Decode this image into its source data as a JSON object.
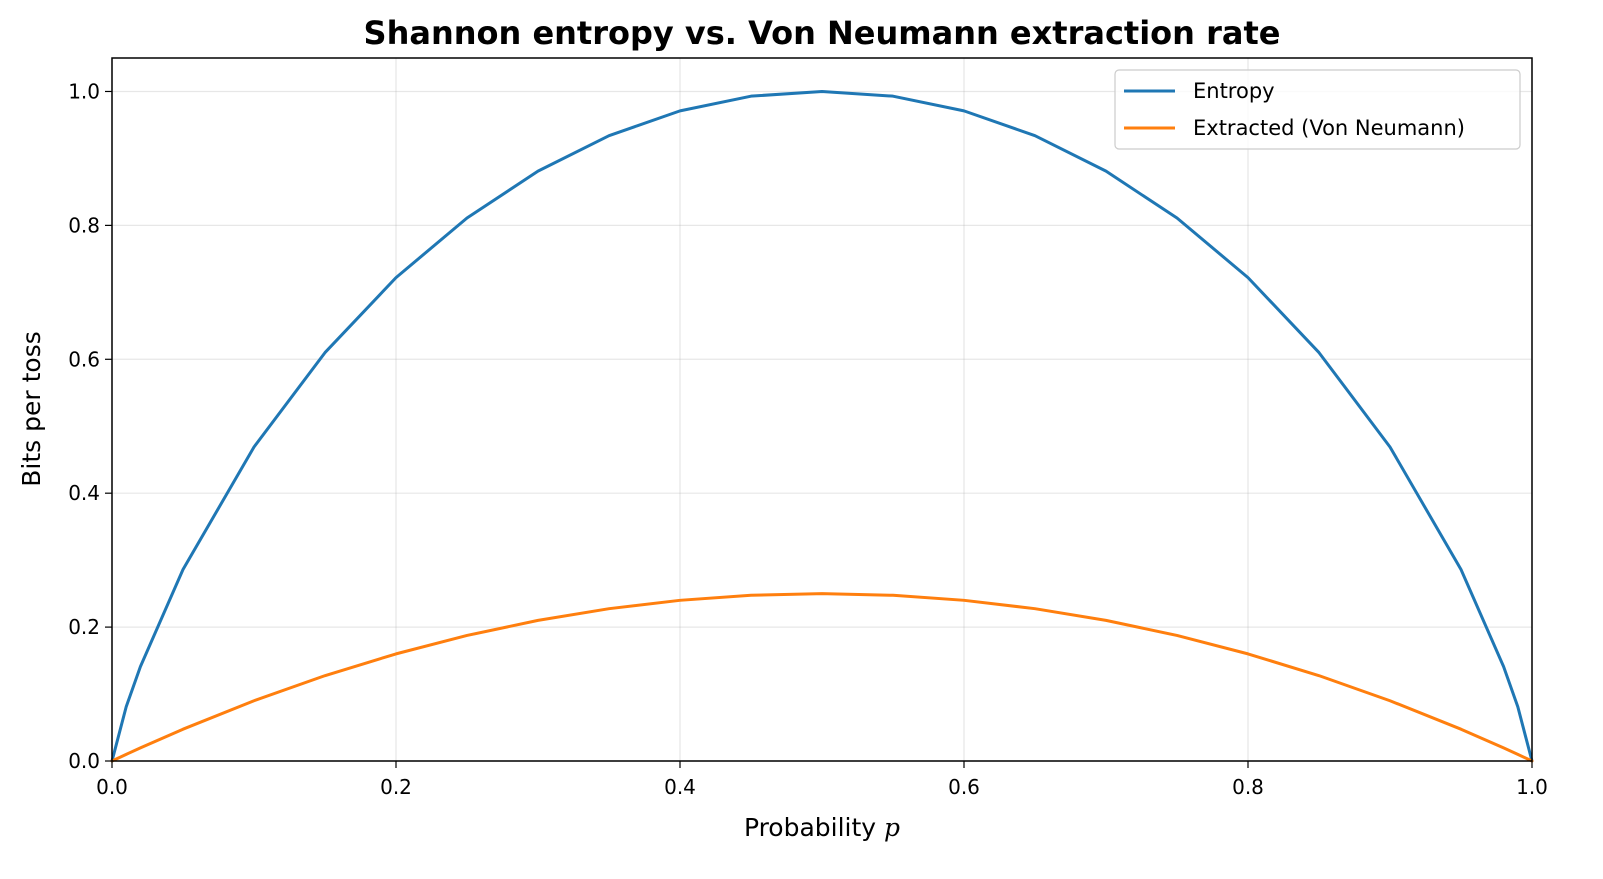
{
  "chart_data": {
    "type": "line",
    "title": "Shannon entropy vs. Von Neumann extraction rate",
    "xlabel": "Probability",
    "xlabel_var": "p",
    "ylabel": "Bits per toss",
    "xlim": [
      0.0,
      1.0
    ],
    "ylim": [
      0.0,
      1.05
    ],
    "x_ticks": [
      "0.0",
      "0.2",
      "0.4",
      "0.6",
      "0.8",
      "1.0"
    ],
    "y_ticks": [
      "0.0",
      "0.2",
      "0.4",
      "0.6",
      "0.8",
      "1.0"
    ],
    "grid": true,
    "legend_position": "top-right",
    "x": [
      0.0,
      0.01,
      0.02,
      0.05,
      0.1,
      0.15,
      0.2,
      0.25,
      0.3,
      0.35,
      0.4,
      0.45,
      0.5,
      0.55,
      0.6,
      0.65,
      0.7,
      0.75,
      0.8,
      0.85,
      0.9,
      0.95,
      0.98,
      0.99,
      1.0
    ],
    "series": [
      {
        "name": "Entropy",
        "color": "#1f77b4",
        "values": [
          0.0,
          0.081,
          0.141,
          0.286,
          0.469,
          0.61,
          0.722,
          0.811,
          0.881,
          0.934,
          0.971,
          0.993,
          1.0,
          0.993,
          0.971,
          0.934,
          0.881,
          0.811,
          0.722,
          0.61,
          0.469,
          0.286,
          0.141,
          0.081,
          0.0
        ]
      },
      {
        "name": "Extracted (Von Neumann)",
        "color": "#ff7f0e",
        "values": [
          0.0,
          0.0099,
          0.0196,
          0.0475,
          0.09,
          0.1275,
          0.16,
          0.1875,
          0.21,
          0.2275,
          0.24,
          0.2475,
          0.25,
          0.2475,
          0.24,
          0.2275,
          0.21,
          0.1875,
          0.16,
          0.1275,
          0.09,
          0.0475,
          0.0196,
          0.0099,
          0.0
        ]
      }
    ]
  }
}
